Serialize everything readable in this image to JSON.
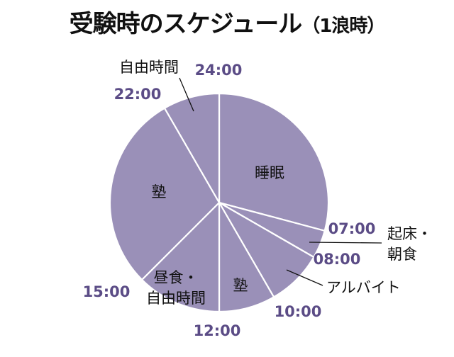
{
  "title": "受験時のスケジュール",
  "subtitle": "（1浪時）",
  "colors": {
    "slice": "#9a90b8",
    "tick_text": "#5b4c86",
    "stroke": "#ffffff",
    "leader": "#111111"
  },
  "chart_data": {
    "type": "pie",
    "title": "受験時のスケジュール（1浪時）",
    "unit": "hours",
    "slices": [
      {
        "label": "睡眠",
        "start": "24:00",
        "end": "07:00",
        "hours": 7
      },
      {
        "label": "起床・朝食",
        "start": "07:00",
        "end": "08:00",
        "hours": 1
      },
      {
        "label": "アルバイト",
        "start": "08:00",
        "end": "10:00",
        "hours": 2
      },
      {
        "label": "塾",
        "start": "10:00",
        "end": "12:00",
        "hours": 2
      },
      {
        "label": "昼食・自由時間",
        "start": "12:00",
        "end": "15:00",
        "hours": 3
      },
      {
        "label": "塾",
        "start": "15:00",
        "end": "22:00",
        "hours": 7
      },
      {
        "label": "自由時間",
        "start": "22:00",
        "end": "24:00",
        "hours": 2
      }
    ],
    "tick_labels": [
      "24:00",
      "07:00",
      "08:00",
      "10:00",
      "12:00",
      "15:00",
      "22:00"
    ]
  }
}
